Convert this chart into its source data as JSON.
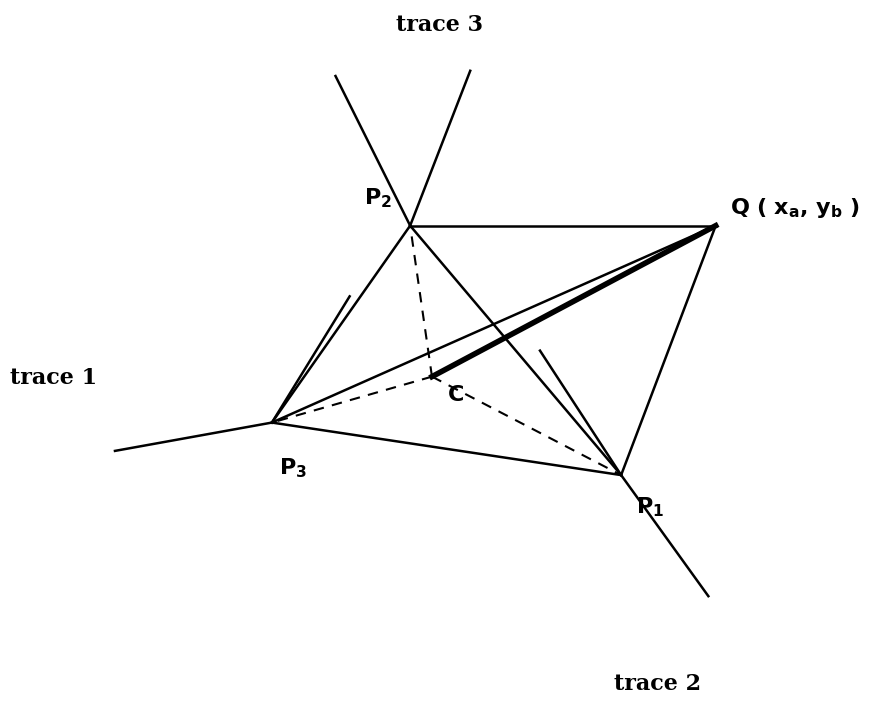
{
  "P2": [
    0.44,
    0.67
  ],
  "P3": [
    0.25,
    0.37
  ],
  "P1": [
    0.73,
    0.29
  ],
  "Q": [
    0.86,
    0.67
  ],
  "C": [
    0.47,
    0.44
  ],
  "trace3_dir1": [
    -0.45,
    1.0
  ],
  "trace3_dir2": [
    0.35,
    1.0
  ],
  "trace1_dir1": [
    -1.0,
    -0.2
  ],
  "trace1_dir2": [
    0.5,
    0.9
  ],
  "trace2_dir1": [
    -0.5,
    0.85
  ],
  "trace2_dir2": [
    0.65,
    -1.0
  ],
  "trace3_ext": 0.25,
  "trace1_ext": 0.22,
  "trace2_ext": 0.22,
  "trace1_label": "trace 1",
  "trace2_label": "trace 2",
  "trace3_label": "trace 3",
  "label_P2": "P",
  "label_P3": "P",
  "label_P1": "P",
  "label_Q": "Q ( x",
  "label_C": "C",
  "background": "#ffffff",
  "line_color": "#000000",
  "xlim": [
    0.0,
    1.0
  ],
  "ylim": [
    0.0,
    1.0
  ],
  "figsize": [
    8.56,
    6.9
  ],
  "dpi": 100
}
